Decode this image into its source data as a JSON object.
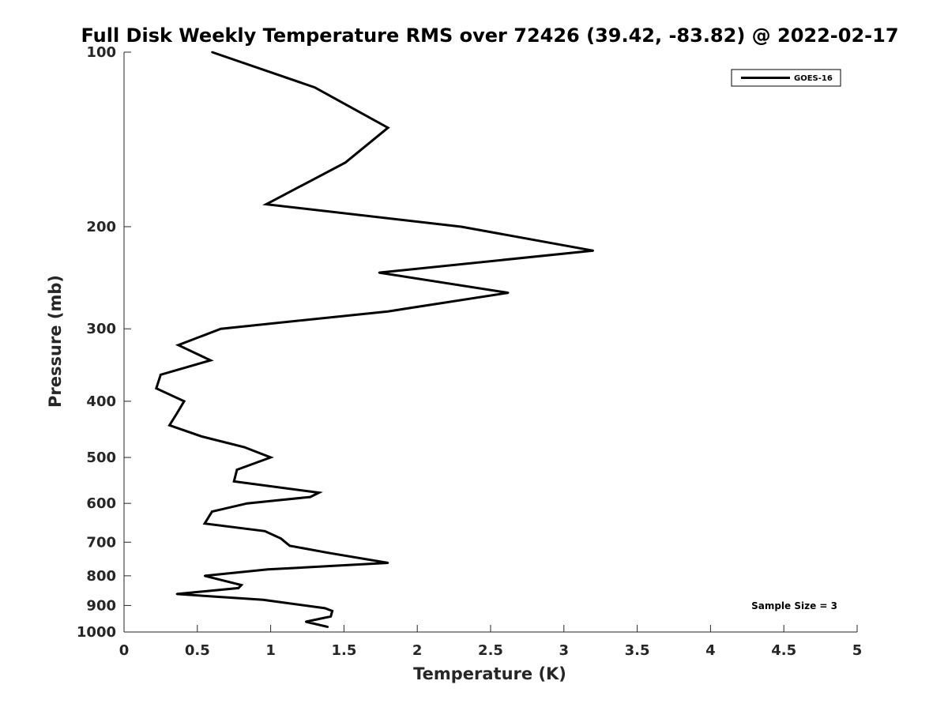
{
  "chart_data": {
    "type": "line",
    "title": "Full Disk Weekly Temperature RMS over 72426 (39.42, -83.82) @ 2022-02-17",
    "xlabel": "Temperature (K)",
    "ylabel": "Pressure (mb)",
    "xlim": [
      0,
      5
    ],
    "ylim": [
      100,
      1000
    ],
    "y_scale": "log",
    "y_reversed": true,
    "x_ticks": [
      "0",
      "0.5",
      "1",
      "1.5",
      "2",
      "2.5",
      "3",
      "3.5",
      "4",
      "4.5",
      "5"
    ],
    "y_ticks": [
      "100",
      "200",
      "300",
      "400",
      "500",
      "600",
      "700",
      "800",
      "900",
      "1000"
    ],
    "grid": false,
    "legend_position": "top-right",
    "annotation": "Sample Size = 3",
    "series": [
      {
        "name": "GOES-16",
        "color": "#000000",
        "x": [
          0.6,
          1.3,
          1.8,
          1.51,
          0.97,
          2.3,
          3.2,
          1.74,
          2.62,
          1.8,
          0.66,
          0.37,
          0.59,
          0.25,
          0.22,
          0.41,
          0.36,
          0.31,
          0.53,
          0.82,
          1.0,
          0.77,
          0.75,
          1.33,
          1.27,
          0.84,
          0.6,
          0.55,
          0.96,
          1.07,
          1.13,
          1.39,
          1.8,
          0.98,
          0.55,
          0.8,
          0.78,
          0.36,
          0.95,
          1.37,
          1.42,
          1.41,
          1.24,
          1.39
        ],
        "y": [
          100,
          115,
          135,
          155,
          183,
          200,
          220,
          240,
          260,
          280,
          300,
          320,
          340,
          360,
          380,
          400,
          420,
          440,
          460,
          480,
          500,
          525,
          550,
          575,
          585,
          600,
          620,
          650,
          670,
          690,
          710,
          730,
          760,
          780,
          800,
          830,
          840,
          860,
          880,
          910,
          920,
          940,
          960,
          980
        ]
      }
    ]
  }
}
